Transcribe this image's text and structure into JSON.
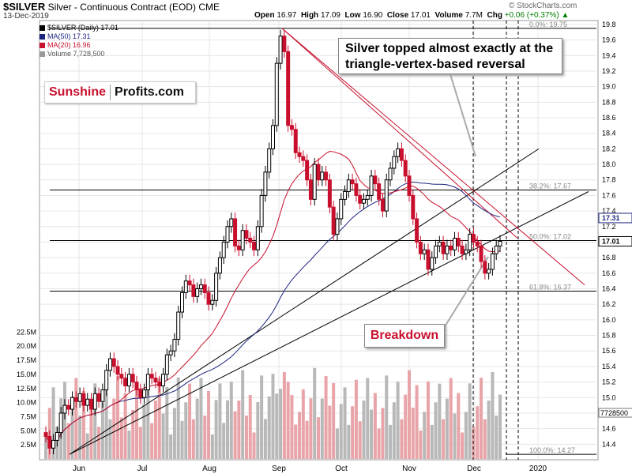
{
  "header": {
    "symbol": "$SILVER",
    "subtitle": "Silver - Continuous Contract (EOD)",
    "exchange": "CME",
    "date": "13-Dec-2019",
    "watermark": "© StockCharts.com",
    "open_label": "Open",
    "open": "16.97",
    "high_label": "High",
    "high": "17.09",
    "low_label": "Low",
    "low": "16.90",
    "close_label": "Close",
    "close": "17.01",
    "volume_label": "Volume",
    "volume": "7.7M",
    "chg_label": "Chg",
    "chg": "+0.06 (+0.37%)",
    "chg_arrow": "▲"
  },
  "legend": {
    "price": "$SILVER (Daily) 17.01",
    "ma50": "MA(50) 17.31",
    "ma20": "MA(20) 16.96",
    "volume": "Volume 7,728,500"
  },
  "logo": {
    "part1": "Sunshine",
    "part2": "Profits.com"
  },
  "annotations": {
    "callout_top_line1": "Silver topped almost exactly at the",
    "callout_top_line2": "triangle-vertex-based reversal",
    "callout_bottom": "Breakdown"
  },
  "colors": {
    "up": "#000000",
    "down": "#c8102e",
    "ma50": "#1a237e",
    "ma20": "#c8102e",
    "vol_up": "#b8b8b8",
    "vol_down": "#e8a4a8",
    "trend_black": "#000000",
    "trend_red": "#c8102e"
  },
  "chart_data": {
    "type": "candlestick",
    "x_tick_labels": [
      "Jun",
      "Jul",
      "Aug",
      "Sep",
      "Oct",
      "Nov",
      "Dec",
      "2020"
    ],
    "y_ticks": [
      14.4,
      14.6,
      14.8,
      15.0,
      15.2,
      15.4,
      15.6,
      15.8,
      16.0,
      16.2,
      16.4,
      16.6,
      16.8,
      17.0,
      17.2,
      17.4,
      17.6,
      17.8,
      18.0,
      18.2,
      18.4,
      18.6,
      18.8,
      19.0,
      19.2,
      19.4,
      19.6,
      19.8
    ],
    "y_range": [
      14.2,
      19.85
    ],
    "price_flags": [
      {
        "value": 17.31,
        "text": "17.31",
        "color": "#1a237e"
      },
      {
        "value": 17.01,
        "text": "17.01",
        "color": "#000000"
      }
    ],
    "volume_flag": "7728500",
    "volume_ticks": [
      {
        "value": 2.5,
        "text": "2.5M"
      },
      {
        "value": 5.0,
        "text": "5.0M"
      },
      {
        "value": 7.5,
        "text": "7.5M"
      },
      {
        "value": 10.0,
        "text": "10.0M"
      },
      {
        "value": 12.5,
        "text": "12.5M"
      },
      {
        "value": 15.0,
        "text": "15.0M"
      },
      {
        "value": 17.5,
        "text": "17.5M"
      },
      {
        "value": 20.0,
        "text": "20.0M"
      },
      {
        "value": 22.5,
        "text": "22.5M"
      }
    ],
    "fib_levels": [
      {
        "value": 19.75,
        "text": "0.0%: 19.75"
      },
      {
        "value": 17.67,
        "text": "38.2%: 17.67"
      },
      {
        "value": 17.02,
        "text": "50.0%: 17.02"
      },
      {
        "value": 16.37,
        "text": "61.8%: 16.37"
      },
      {
        "value": 14.27,
        "text": "100.0%: 14.27"
      }
    ],
    "key_points": [
      {
        "date": "2019-05-28",
        "low": 14.27
      },
      {
        "date": "2019-09-04",
        "high": 19.75
      },
      {
        "date": "2019-11-04",
        "high": 18.25
      },
      {
        "date": "2019-12-04",
        "low": 16.55
      },
      {
        "date": "2019-12-13",
        "close": 17.01
      }
    ],
    "close_series": [
      14.5,
      14.35,
      14.45,
      14.55,
      14.8,
      14.9,
      14.85,
      15.0,
      14.95,
      15.05,
      14.9,
      14.98,
      14.85,
      15.05,
      14.95,
      15.1,
      15.35,
      15.5,
      15.4,
      15.3,
      15.25,
      15.15,
      15.3,
      15.2,
      15.1,
      15.0,
      15.1,
      15.3,
      15.25,
      15.2,
      15.15,
      15.3,
      15.55,
      15.6,
      15.75,
      16.1,
      16.35,
      16.5,
      16.45,
      16.3,
      16.4,
      16.45,
      16.35,
      16.2,
      16.25,
      16.6,
      16.8,
      17.0,
      17.2,
      17.3,
      16.95,
      16.9,
      17.15,
      17.05,
      17.0,
      16.9,
      17.2,
      17.6,
      17.9,
      18.2,
      18.5,
      19.3,
      19.65,
      19.45,
      18.5,
      18.45,
      18.15,
      18.1,
      18.05,
      17.8,
      17.55,
      18.0,
      17.8,
      17.9,
      17.8,
      17.45,
      17.1,
      17.3,
      17.55,
      17.65,
      17.8,
      17.75,
      17.6,
      17.5,
      17.55,
      17.6,
      17.85,
      17.75,
      17.55,
      17.4,
      17.8,
      17.95,
      18.1,
      18.2,
      18.05,
      17.85,
      17.6,
      17.3,
      17.0,
      16.85,
      16.9,
      16.65,
      16.8,
      16.95,
      17.0,
      16.85,
      16.95,
      16.9,
      17.05,
      16.95,
      16.85,
      16.9,
      17.1,
      17.0,
      16.95,
      16.75,
      16.6,
      16.65,
      16.85,
      16.95,
      17.01
    ]
  }
}
